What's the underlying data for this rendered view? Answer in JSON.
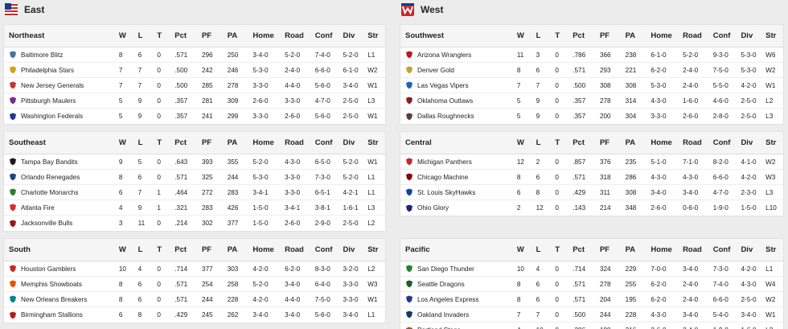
{
  "columns": [
    "W",
    "L",
    "T",
    "Pct",
    "PF",
    "PA",
    "Home",
    "Road",
    "Conf",
    "Div",
    "Str"
  ],
  "conferences": [
    {
      "name": "East",
      "divisions": [
        {
          "name": "Northeast",
          "teams": [
            {
              "name": "Baltimore Blitz",
              "logo_color": "#4a6fa5",
              "stats": [
                "8",
                "6",
                "0",
                ".571",
                "296",
                "250",
                "3-4-0",
                "5-2-0",
                "7-4-0",
                "5-2-0",
                "L1"
              ]
            },
            {
              "name": "Philadelphia Stars",
              "logo_color": "#d4a017",
              "stats": [
                "7",
                "7",
                "0",
                ".500",
                "242",
                "246",
                "5-3-0",
                "2-4-0",
                "6-6-0",
                "6-1-0",
                "W2"
              ]
            },
            {
              "name": "New Jersey Generals",
              "logo_color": "#c0392b",
              "stats": [
                "7",
                "7",
                "0",
                ".500",
                "285",
                "278",
                "3-3-0",
                "4-4-0",
                "5-6-0",
                "3-4-0",
                "W1"
              ]
            },
            {
              "name": "Pittsburgh Maulers",
              "logo_color": "#7b2d8e",
              "stats": [
                "5",
                "9",
                "0",
                ".357",
                "281",
                "309",
                "2-6-0",
                "3-3-0",
                "4-7-0",
                "2-5-0",
                "L3"
              ]
            },
            {
              "name": "Washington Federals",
              "logo_color": "#1f3a93",
              "stats": [
                "5",
                "9",
                "0",
                ".357",
                "241",
                "299",
                "3-3-0",
                "2-6-0",
                "5-6-0",
                "2-5-0",
                "W1"
              ]
            }
          ]
        },
        {
          "name": "Southeast",
          "teams": [
            {
              "name": "Tampa Bay Bandits",
              "logo_color": "#1a1a1a",
              "stats": [
                "9",
                "5",
                "0",
                ".643",
                "393",
                "355",
                "5-2-0",
                "4-3-0",
                "6-5-0",
                "5-2-0",
                "W1"
              ]
            },
            {
              "name": "Orlando Renegades",
              "logo_color": "#1c4587",
              "stats": [
                "8",
                "6",
                "0",
                ".571",
                "325",
                "244",
                "5-3-0",
                "3-3-0",
                "7-3-0",
                "5-2-0",
                "L1"
              ]
            },
            {
              "name": "Charlotte Monarchs",
              "logo_color": "#2e7d32",
              "stats": [
                "6",
                "7",
                "1",
                ".464",
                "272",
                "283",
                "3-4-1",
                "3-3-0",
                "6-5-1",
                "4-2-1",
                "L1"
              ]
            },
            {
              "name": "Atlanta Fire",
              "logo_color": "#d32f2f",
              "stats": [
                "4",
                "9",
                "1",
                ".321",
                "283",
                "426",
                "1-5-0",
                "3-4-1",
                "3-8-1",
                "1-6-1",
                "L3"
              ]
            },
            {
              "name": "Jacksonville Bulls",
              "logo_color": "#8e1b1b",
              "stats": [
                "3",
                "11",
                "0",
                ".214",
                "302",
                "377",
                "1-5-0",
                "2-6-0",
                "2-9-0",
                "2-5-0",
                "L2"
              ]
            }
          ]
        },
        {
          "name": "South",
          "teams": [
            {
              "name": "Houston Gamblers",
              "logo_color": "#c62828",
              "stats": [
                "10",
                "4",
                "0",
                ".714",
                "377",
                "303",
                "4-2-0",
                "6-2-0",
                "8-3-0",
                "3-2-0",
                "L2"
              ]
            },
            {
              "name": "Memphis Showboats",
              "logo_color": "#e65100",
              "stats": [
                "8",
                "6",
                "0",
                ".571",
                "254",
                "258",
                "5-2-0",
                "3-4-0",
                "6-4-0",
                "3-3-0",
                "W3"
              ]
            },
            {
              "name": "New Orleans Breakers",
              "logo_color": "#00838f",
              "stats": [
                "8",
                "6",
                "0",
                ".571",
                "244",
                "228",
                "4-2-0",
                "4-4-0",
                "7-5-0",
                "3-3-0",
                "W1"
              ]
            },
            {
              "name": "Birmingham Stallions",
              "logo_color": "#b71c1c",
              "stats": [
                "6",
                "8",
                "0",
                ".429",
                "245",
                "262",
                "3-4-0",
                "3-4-0",
                "5-6-0",
                "3-4-0",
                "L1"
              ]
            }
          ]
        }
      ]
    },
    {
      "name": "West",
      "divisions": [
        {
          "name": "Southwest",
          "teams": [
            {
              "name": "Arizona Wranglers",
              "logo_color": "#b71c1c",
              "stats": [
                "11",
                "3",
                "0",
                ".786",
                "366",
                "238",
                "6-1-0",
                "5-2-0",
                "9-3-0",
                "5-3-0",
                "W6"
              ]
            },
            {
              "name": "Denver Gold",
              "logo_color": "#c9a227",
              "stats": [
                "8",
                "6",
                "0",
                ".571",
                "293",
                "221",
                "6-2-0",
                "2-4-0",
                "7-5-0",
                "5-3-0",
                "W2"
              ]
            },
            {
              "name": "Las Vegas Vipers",
              "logo_color": "#1565c0",
              "stats": [
                "7",
                "7",
                "0",
                ".500",
                "308",
                "308",
                "5-3-0",
                "2-4-0",
                "5-5-0",
                "4-2-0",
                "W1"
              ]
            },
            {
              "name": "Oklahoma Outlaws",
              "logo_color": "#8d1b1b",
              "stats": [
                "5",
                "9",
                "0",
                ".357",
                "278",
                "314",
                "4-3-0",
                "1-6-0",
                "4-6-0",
                "2-5-0",
                "L2"
              ]
            },
            {
              "name": "Dallas Roughnecks",
              "logo_color": "#5d4037",
              "stats": [
                "5",
                "9",
                "0",
                ".357",
                "200",
                "304",
                "3-3-0",
                "2-6-0",
                "2-8-0",
                "2-5-0",
                "L3"
              ]
            }
          ]
        },
        {
          "name": "Central",
          "teams": [
            {
              "name": "Michigan Panthers",
              "logo_color": "#c62828",
              "stats": [
                "12",
                "2",
                "0",
                ".857",
                "376",
                "235",
                "5-1-0",
                "7-1-0",
                "8-2-0",
                "4-1-0",
                "W2"
              ]
            },
            {
              "name": "Chicago Machine",
              "logo_color": "#8b0000",
              "stats": [
                "8",
                "6",
                "0",
                ".571",
                "318",
                "286",
                "4-3-0",
                "4-3-0",
                "6-6-0",
                "4-2-0",
                "W3"
              ]
            },
            {
              "name": "St. Louis SkyHawks",
              "logo_color": "#0d47a1",
              "stats": [
                "6",
                "8",
                "0",
                ".429",
                "311",
                "308",
                "3-4-0",
                "3-4-0",
                "4-7-0",
                "2-3-0",
                "L3"
              ]
            },
            {
              "name": "Ohio Glory",
              "logo_color": "#1a237e",
              "stats": [
                "2",
                "12",
                "0",
                ".143",
                "214",
                "348",
                "2-6-0",
                "0-6-0",
                "1-9-0",
                "1-5-0",
                "L10"
              ]
            }
          ]
        },
        {
          "name": "Pacific",
          "teams": [
            {
              "name": "San Diego Thunder",
              "logo_color": "#2e7d32",
              "stats": [
                "10",
                "4",
                "0",
                ".714",
                "324",
                "229",
                "7-0-0",
                "3-4-0",
                "7-3-0",
                "4-2-0",
                "L1"
              ]
            },
            {
              "name": "Seattle Dragons",
              "logo_color": "#1b5e20",
              "stats": [
                "8",
                "6",
                "0",
                ".571",
                "278",
                "255",
                "6-2-0",
                "2-4-0",
                "7-4-0",
                "4-3-0",
                "W4"
              ]
            },
            {
              "name": "Los Angeles Express",
              "logo_color": "#283593",
              "stats": [
                "8",
                "6",
                "0",
                ".571",
                "204",
                "195",
                "6-2-0",
                "2-4-0",
                "6-6-0",
                "2-5-0",
                "W2"
              ]
            },
            {
              "name": "Oakland Invaders",
              "logo_color": "#0d3b66",
              "stats": [
                "7",
                "7",
                "0",
                ".500",
                "244",
                "228",
                "4-3-0",
                "3-4-0",
                "5-4-0",
                "3-4-0",
                "W1"
              ]
            },
            {
              "name": "Portland Stags",
              "logo_color": "#a0522d",
              "stats": [
                "4",
                "10",
                "0",
                ".286",
                "180",
                "316",
                "2-6-0",
                "2-4-0",
                "1-9-0",
                "1-6-0",
                "L2"
              ]
            }
          ]
        }
      ]
    }
  ]
}
